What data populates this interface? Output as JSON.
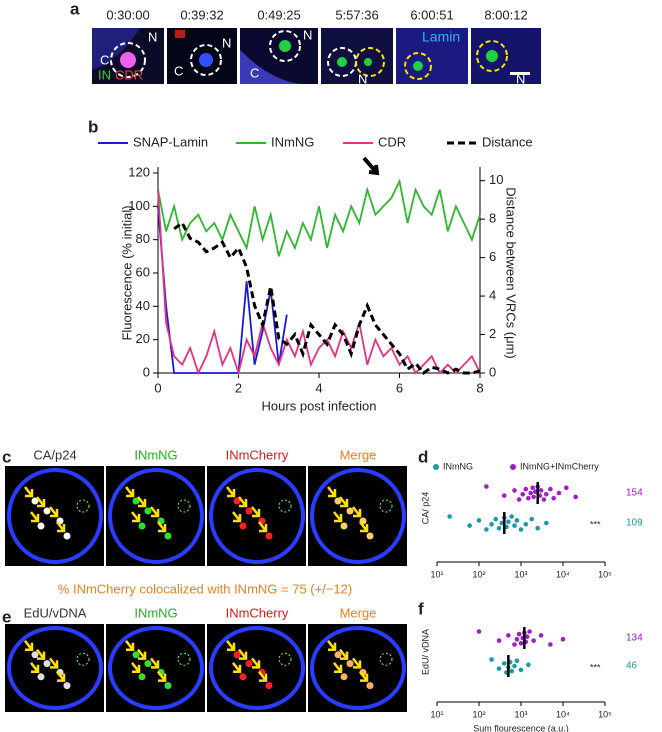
{
  "panels": {
    "a": {
      "letter": "a",
      "timestamps": [
        "0:30:00",
        "0:39:32",
        "0:49:25",
        "5:57:36",
        "6:00:51",
        "8:00:12"
      ],
      "n": "N",
      "c": "C",
      "in": "IN",
      "cdr": "CDR",
      "lamin": "Lamin"
    },
    "b": {
      "letter": "b"
    },
    "c": {
      "letter": "c",
      "titles": [
        "CA/p24",
        "INmNG",
        "INmCherry",
        "Merge"
      ],
      "caption": "% INmCherry colocalized with INmNG = 75 (+/−12)"
    },
    "d": {
      "letter": "d"
    },
    "e": {
      "letter": "e",
      "titles": [
        "EdU/vDNA",
        "INmNG",
        "INmCherry",
        "Merge"
      ]
    },
    "f": {
      "letter": "f"
    }
  },
  "chart_data": [
    {
      "type": "line",
      "xlabel": "Hours post infection",
      "ylabel": "Fluorescence (% initial)",
      "y2label": "Distance between VRCs (μm)",
      "x": [
        0,
        0.2,
        0.4,
        0.6,
        0.8,
        1,
        1.2,
        1.4,
        1.6,
        1.8,
        2,
        2.2,
        2.4,
        2.6,
        2.8,
        3,
        3.2,
        3.4,
        3.6,
        3.8,
        4,
        4.2,
        4.4,
        4.6,
        4.8,
        5,
        5.2,
        5.4,
        5.6,
        5.8,
        6,
        6.2,
        6.4,
        6.6,
        6.8,
        7,
        7.2,
        7.4,
        7.6,
        7.8,
        8
      ],
      "xlim": [
        0,
        8
      ],
      "xticks": [
        0,
        2,
        4,
        6,
        8
      ],
      "ylim": [
        0,
        120
      ],
      "yticks": [
        0,
        20,
        40,
        60,
        80,
        100,
        120
      ],
      "y2lim": [
        0,
        10.4
      ],
      "y2ticks": [
        0,
        2,
        4,
        6,
        8,
        10
      ],
      "series": [
        {
          "name": "SNAP-Lamin",
          "color": "#1a1ad8",
          "values": [
            100,
            40,
            0,
            0,
            0,
            0,
            0,
            0,
            0,
            0,
            0,
            55,
            5,
            25,
            50,
            5,
            35,
            null,
            null,
            null,
            null,
            null,
            null,
            null,
            null,
            null,
            null,
            null,
            null,
            null,
            null,
            null,
            null,
            null,
            null,
            null,
            null,
            null,
            null,
            null,
            null
          ]
        },
        {
          "name": "INmNG",
          "color": "#2db82d",
          "values": [
            110,
            85,
            100,
            80,
            90,
            95,
            85,
            90,
            80,
            95,
            85,
            75,
            100,
            80,
            95,
            70,
            85,
            75,
            90,
            80,
            100,
            75,
            95,
            85,
            100,
            90,
            110,
            95,
            100,
            105,
            115,
            90,
            110,
            100,
            95,
            110,
            85,
            100,
            90,
            80,
            95
          ]
        },
        {
          "name": "CDR",
          "color": "#e8308a",
          "values": [
            110,
            30,
            10,
            5,
            15,
            0,
            10,
            25,
            5,
            15,
            0,
            20,
            10,
            30,
            15,
            5,
            20,
            10,
            25,
            5,
            15,
            20,
            10,
            25,
            15,
            30,
            5,
            20,
            10,
            15,
            5,
            10,
            0,
            5,
            10,
            0,
            5,
            0,
            5,
            10,
            0
          ]
        },
        {
          "name": "Distance",
          "color": "#000000",
          "dash": true,
          "axis": "y2",
          "values": [
            null,
            null,
            7.5,
            7.8,
            7,
            6.8,
            6.3,
            6.5,
            6.8,
            6,
            6.5,
            5.5,
            3.5,
            2.5,
            4.5,
            1.8,
            1.5,
            2,
            1,
            2.5,
            2,
            1.5,
            2.5,
            2,
            1,
            2.5,
            3.5,
            2.5,
            2,
            1.5,
            1,
            0.2,
            0.5,
            0,
            0.3,
            0.2,
            0,
            0.2,
            0,
            0,
            0.1
          ]
        }
      ]
    },
    {
      "type": "strip",
      "ylabel": "CA/ p24",
      "log": true,
      "legend": "top",
      "xlim": [
        10,
        100000
      ],
      "xticks": [
        {
          "value": 10,
          "label": "10¹"
        },
        {
          "value": 100,
          "label": "10²"
        },
        {
          "value": 1000,
          "label": "10³"
        },
        {
          "value": 10000,
          "label": "10⁴"
        },
        {
          "value": 100000,
          "label": "10⁵"
        }
      ],
      "annotation": "***",
      "series": [
        {
          "name": "INmNG",
          "color": "#1a9aa8",
          "count": 109,
          "median": 400,
          "values": [
            20,
            60,
            100,
            150,
            200,
            250,
            300,
            350,
            400,
            450,
            500,
            600,
            700,
            800,
            1000,
            1300,
            1800,
            2500,
            4000
          ]
        },
        {
          "name": "INmNG+INmCherry",
          "color": "#a21cc8",
          "count": 154,
          "median": 2500,
          "values": [
            150,
            400,
            700,
            900,
            1100,
            1300,
            1500,
            1700,
            1900,
            2000,
            2200,
            2500,
            2800,
            3000,
            3500,
            4000,
            5000,
            6000,
            8000,
            12000,
            20000
          ]
        }
      ]
    },
    {
      "type": "strip",
      "ylabel": "EdU/ vDNA",
      "xlabel": "Sum flourescence (a.u.)",
      "log": true,
      "xlim": [
        10,
        100000
      ],
      "xticks": [
        {
          "value": 10,
          "label": "10¹"
        },
        {
          "value": 100,
          "label": "10²"
        },
        {
          "value": 1000,
          "label": "10³"
        },
        {
          "value": 10000,
          "label": "10⁴"
        },
        {
          "value": 100000,
          "label": "10⁵"
        }
      ],
      "annotation": "***",
      "series": [
        {
          "color": "#1a9aa8",
          "count": 46,
          "median": 500,
          "values": [
            200,
            300,
            400,
            450,
            500,
            550,
            600,
            700,
            800,
            1000,
            1500
          ]
        },
        {
          "color": "#a21cc8",
          "count": 134,
          "median": 1200,
          "values": [
            100,
            300,
            500,
            700,
            800,
            900,
            1000,
            1100,
            1200,
            1300,
            1400,
            1600,
            2000,
            3000,
            5000,
            10000
          ]
        }
      ]
    }
  ]
}
